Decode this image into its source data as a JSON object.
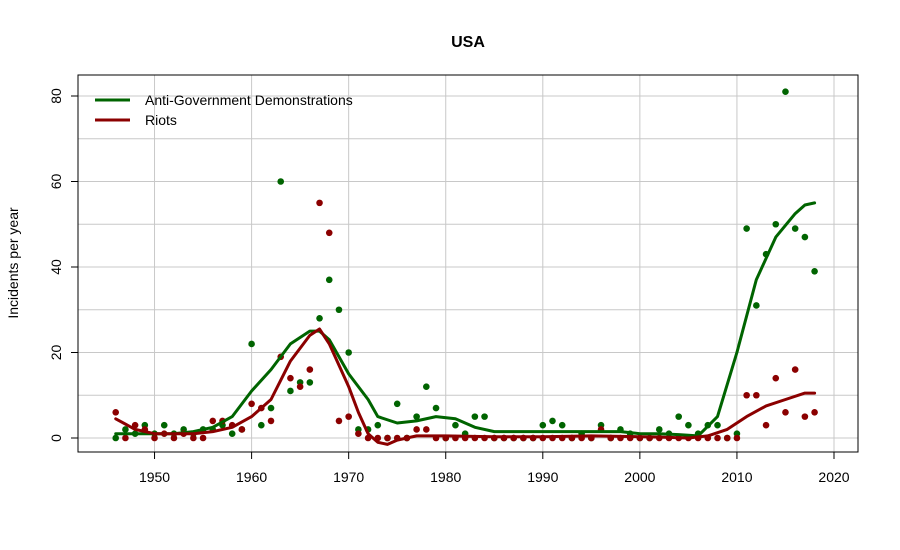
{
  "chart_data": {
    "type": "scatter",
    "title": "USA",
    "xlabel": "",
    "ylabel": "Incidents per year",
    "xlim": [
      1945,
      2020
    ],
    "ylim": [
      0,
      80
    ],
    "x_ticks": [
      1950,
      1960,
      1970,
      1980,
      1990,
      2000,
      2010,
      2020
    ],
    "y_ticks": [
      0,
      20,
      40,
      60,
      80
    ],
    "grid": true,
    "legend_position": "top-left",
    "colors": {
      "demonstrations": "#006400",
      "riots": "#8b0000",
      "grid": "#c8c8c8"
    },
    "series": [
      {
        "name": "Anti-Government Demonstrations",
        "points": [
          [
            1946,
            0
          ],
          [
            1947,
            2
          ],
          [
            1948,
            1
          ],
          [
            1949,
            3
          ],
          [
            1950,
            1
          ],
          [
            1951,
            3
          ],
          [
            1952,
            1
          ],
          [
            1953,
            2
          ],
          [
            1954,
            1
          ],
          [
            1955,
            2
          ],
          [
            1956,
            2
          ],
          [
            1957,
            3
          ],
          [
            1958,
            1
          ],
          [
            1959,
            2
          ],
          [
            1960,
            22
          ],
          [
            1961,
            3
          ],
          [
            1962,
            7
          ],
          [
            1963,
            60
          ],
          [
            1964,
            11
          ],
          [
            1965,
            13
          ],
          [
            1966,
            13
          ],
          [
            1967,
            28
          ],
          [
            1968,
            37
          ],
          [
            1969,
            30
          ],
          [
            1970,
            20
          ],
          [
            1971,
            2
          ],
          [
            1972,
            2
          ],
          [
            1973,
            3
          ],
          [
            1974,
            0
          ],
          [
            1975,
            8
          ],
          [
            1976,
            0
          ],
          [
            1977,
            5
          ],
          [
            1978,
            12
          ],
          [
            1979,
            7
          ],
          [
            1980,
            0
          ],
          [
            1981,
            3
          ],
          [
            1982,
            1
          ],
          [
            1983,
            5
          ],
          [
            1984,
            5
          ],
          [
            1985,
            0
          ],
          [
            1986,
            0
          ],
          [
            1987,
            0
          ],
          [
            1988,
            0
          ],
          [
            1989,
            0
          ],
          [
            1990,
            3
          ],
          [
            1991,
            4
          ],
          [
            1992,
            3
          ],
          [
            1993,
            0
          ],
          [
            1994,
            1
          ],
          [
            1995,
            0
          ],
          [
            1996,
            3
          ],
          [
            1997,
            0
          ],
          [
            1998,
            2
          ],
          [
            1999,
            1
          ],
          [
            2000,
            0
          ],
          [
            2001,
            0
          ],
          [
            2002,
            2
          ],
          [
            2003,
            1
          ],
          [
            2004,
            5
          ],
          [
            2005,
            3
          ],
          [
            2006,
            1
          ],
          [
            2007,
            3
          ],
          [
            2008,
            3
          ],
          [
            2009,
            0
          ],
          [
            2010,
            1
          ],
          [
            2011,
            49
          ],
          [
            2012,
            31
          ],
          [
            2013,
            43
          ],
          [
            2014,
            50
          ],
          [
            2015,
            81
          ],
          [
            2016,
            49
          ],
          [
            2017,
            47
          ],
          [
            2018,
            39
          ]
        ],
        "trend": [
          [
            1946,
            1
          ],
          [
            1948,
            1
          ],
          [
            1950,
            1
          ],
          [
            1952,
            1
          ],
          [
            1954,
            1.5
          ],
          [
            1956,
            2.5
          ],
          [
            1958,
            5
          ],
          [
            1960,
            11
          ],
          [
            1962,
            16
          ],
          [
            1964,
            22
          ],
          [
            1966,
            25
          ],
          [
            1967,
            25
          ],
          [
            1968,
            23
          ],
          [
            1970,
            15
          ],
          [
            1972,
            9
          ],
          [
            1973,
            5
          ],
          [
            1975,
            3.5
          ],
          [
            1977,
            4
          ],
          [
            1979,
            5
          ],
          [
            1981,
            4.5
          ],
          [
            1983,
            2.5
          ],
          [
            1985,
            1.5
          ],
          [
            1988,
            1.5
          ],
          [
            1990,
            1.5
          ],
          [
            1992,
            1.5
          ],
          [
            1995,
            1.5
          ],
          [
            1998,
            1.5
          ],
          [
            2000,
            1
          ],
          [
            2002,
            1
          ],
          [
            2004,
            0.8
          ],
          [
            2006,
            0.5
          ],
          [
            2008,
            5
          ],
          [
            2010,
            20
          ],
          [
            2012,
            37
          ],
          [
            2014,
            47
          ],
          [
            2016,
            52.5
          ],
          [
            2017,
            54.5
          ],
          [
            2018,
            55
          ]
        ]
      },
      {
        "name": "Riots",
        "points": [
          [
            1946,
            6
          ],
          [
            1947,
            0
          ],
          [
            1948,
            3
          ],
          [
            1949,
            2
          ],
          [
            1950,
            0
          ],
          [
            1951,
            1
          ],
          [
            1952,
            0
          ],
          [
            1953,
            1
          ],
          [
            1954,
            0
          ],
          [
            1955,
            0
          ],
          [
            1956,
            4
          ],
          [
            1957,
            4
          ],
          [
            1958,
            3
          ],
          [
            1959,
            2
          ],
          [
            1960,
            8
          ],
          [
            1961,
            7
          ],
          [
            1962,
            4
          ],
          [
            1963,
            19
          ],
          [
            1964,
            14
          ],
          [
            1965,
            12
          ],
          [
            1966,
            16
          ],
          [
            1967,
            55
          ],
          [
            1968,
            48
          ],
          [
            1969,
            4
          ],
          [
            1970,
            5
          ],
          [
            1971,
            1
          ],
          [
            1972,
            0
          ],
          [
            1973,
            0
          ],
          [
            1974,
            0
          ],
          [
            1975,
            0
          ],
          [
            1976,
            0
          ],
          [
            1977,
            2
          ],
          [
            1978,
            2
          ],
          [
            1979,
            0
          ],
          [
            1980,
            0
          ],
          [
            1981,
            0
          ],
          [
            1982,
            0
          ],
          [
            1983,
            0
          ],
          [
            1984,
            0
          ],
          [
            1985,
            0
          ],
          [
            1986,
            0
          ],
          [
            1987,
            0
          ],
          [
            1988,
            0
          ],
          [
            1989,
            0
          ],
          [
            1990,
            0
          ],
          [
            1991,
            0
          ],
          [
            1992,
            0
          ],
          [
            1993,
            0
          ],
          [
            1994,
            0
          ],
          [
            1995,
            0
          ],
          [
            1996,
            2
          ],
          [
            1997,
            0
          ],
          [
            1998,
            0
          ],
          [
            1999,
            0
          ],
          [
            2000,
            0
          ],
          [
            2001,
            0
          ],
          [
            2002,
            0
          ],
          [
            2003,
            0
          ],
          [
            2004,
            0
          ],
          [
            2005,
            0
          ],
          [
            2006,
            0
          ],
          [
            2007,
            0
          ],
          [
            2008,
            0
          ],
          [
            2009,
            0
          ],
          [
            2010,
            0
          ],
          [
            2011,
            10
          ],
          [
            2012,
            10
          ],
          [
            2013,
            3
          ],
          [
            2014,
            14
          ],
          [
            2015,
            6
          ],
          [
            2016,
            16
          ],
          [
            2017,
            5
          ],
          [
            2018,
            6
          ]
        ],
        "trend": [
          [
            1946,
            4.5
          ],
          [
            1948,
            2
          ],
          [
            1950,
            1
          ],
          [
            1952,
            1
          ],
          [
            1954,
            1
          ],
          [
            1956,
            1.5
          ],
          [
            1958,
            2.5
          ],
          [
            1960,
            5
          ],
          [
            1962,
            9
          ],
          [
            1964,
            18
          ],
          [
            1966,
            24
          ],
          [
            1967,
            25.5
          ],
          [
            1968,
            22
          ],
          [
            1970,
            12
          ],
          [
            1971,
            6
          ],
          [
            1972,
            1
          ],
          [
            1973,
            -1
          ],
          [
            1974,
            -1.5
          ],
          [
            1975,
            -0.5
          ],
          [
            1977,
            0.5
          ],
          [
            1980,
            0.5
          ],
          [
            1985,
            0.3
          ],
          [
            1990,
            0.3
          ],
          [
            1995,
            0.5
          ],
          [
            2000,
            0.3
          ],
          [
            2002,
            0.2
          ],
          [
            2005,
            0
          ],
          [
            2007,
            0.5
          ],
          [
            2009,
            2
          ],
          [
            2011,
            5
          ],
          [
            2013,
            7.5
          ],
          [
            2015,
            9
          ],
          [
            2017,
            10.5
          ],
          [
            2018,
            10.5
          ]
        ]
      }
    ]
  }
}
